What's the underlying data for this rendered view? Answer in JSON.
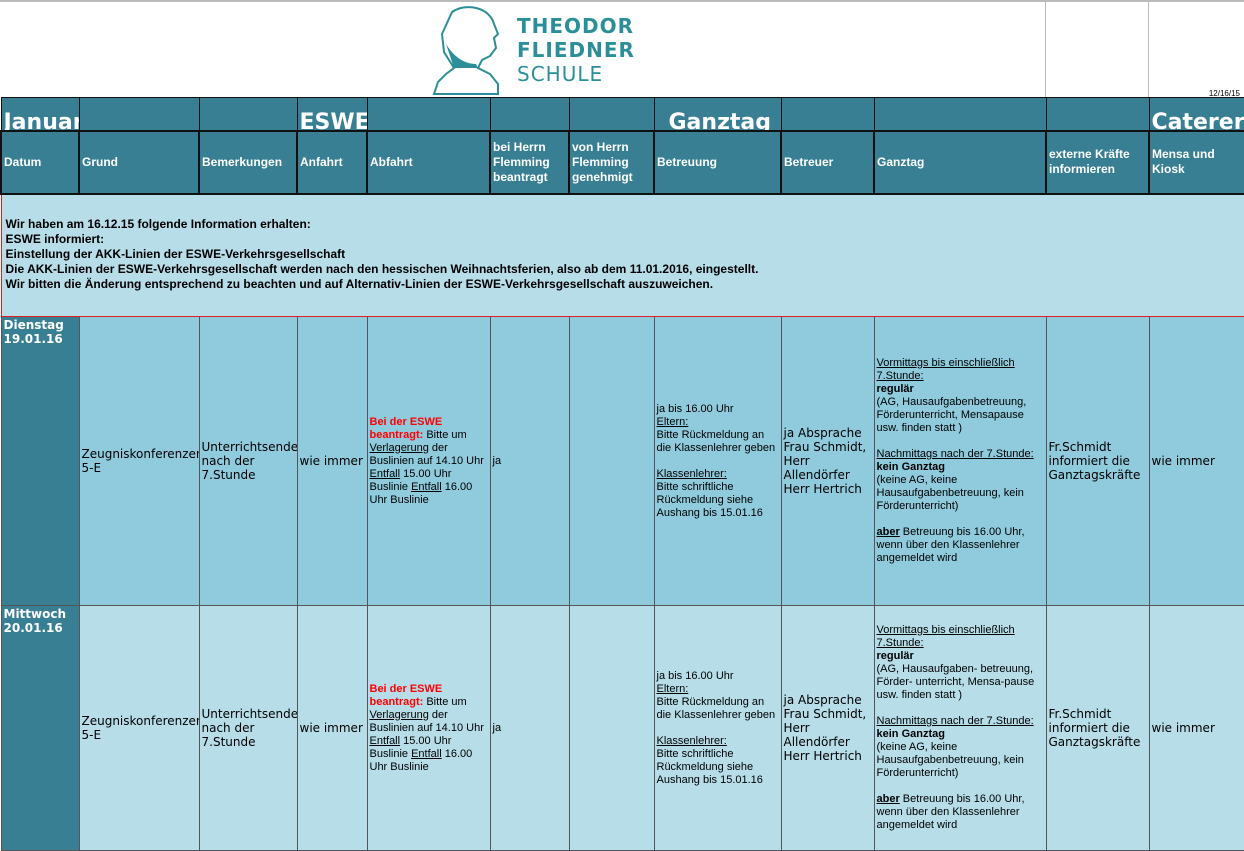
{
  "logo": {
    "line1": "THEODOR",
    "line2": "FLIEDNER",
    "line3": "SCHULE"
  },
  "print_date": "12/16/15",
  "group_headers": {
    "month": "Januar",
    "eswe": "ESWE",
    "ganztag": "Ganztag",
    "caterer": "Caterer"
  },
  "columns": [
    "Datum",
    "Grund",
    "Bemerkungen",
    "Anfahrt",
    "Abfahrt",
    "bei Herrn Flemming beantragt",
    "von Herrn Flemming genehmigt",
    "Betreuung",
    "Betreuer",
    "Ganztag",
    "externe Kräfte informieren",
    "Mensa und Kiosk"
  ],
  "notice": [
    "Wir haben am 16.12.15 folgende Information erhalten:",
    "ESWE informiert:",
    "Einstellung der AKK-Linien der ESWE-Verkehrsgesellschaft",
    "Die AKK-Linien der ESWE-Verkehrsgesellschaft werden nach den hessischen Weihnachtsferien, also ab dem 11.01.2016, eingestellt.",
    "Wir bitten die Änderung entsprechend zu beachten und auf Alternativ-Linien der ESWE-Verkehrsgesellschaft auszuweichen."
  ],
  "rows": [
    {
      "datum": [
        "Dienstag",
        "19.01.16"
      ],
      "grund": [
        "Zeugniskonferenzen",
        "5-E"
      ],
      "bemerkungen": [
        "Unterrichtsende",
        "nach der",
        "7.Stunde"
      ],
      "anfahrt": [
        "wie immer"
      ],
      "abfahrt": [
        [
          [
            "Bei der ESWE",
            "red"
          ]
        ],
        [
          [
            "beantragt:",
            "red"
          ],
          [
            "  Bitte um",
            ""
          ]
        ],
        [
          [
            "Verlagerung",
            "u"
          ],
          [
            " der",
            ""
          ]
        ],
        [
          [
            "Buslinien auf 14.10 Uhr",
            ""
          ]
        ],
        [
          [
            "Entfall",
            "u"
          ],
          [
            " 15.00 Uhr",
            ""
          ]
        ],
        [
          [
            "Buslinie ",
            ""
          ],
          [
            "Entfall",
            "u"
          ],
          [
            " 16.00",
            ""
          ]
        ],
        [
          [
            "Uhr Buslinie",
            ""
          ]
        ]
      ],
      "beantragt": [
        "ja"
      ],
      "genehmigt": [],
      "betreuung": [
        [
          [
            "ja bis 16.00 Uhr",
            ""
          ]
        ],
        [
          [
            "Eltern:",
            "u"
          ]
        ],
        [
          [
            "Bitte Rückmeldung an",
            ""
          ]
        ],
        [
          [
            "die Klassenlehrer geben",
            ""
          ]
        ],
        [],
        [
          [
            "Klassenlehrer:",
            "u"
          ]
        ],
        [
          [
            "Bitte schriftliche",
            ""
          ]
        ],
        [
          [
            "Rückmeldung siehe",
            ""
          ]
        ],
        [
          [
            "Aushang bis 15.01.16",
            ""
          ]
        ]
      ],
      "betreuer": [
        "ja Absprache",
        "Frau Schmidt,",
        "Herr",
        "Allendörfer",
        "Herr Hertrich"
      ],
      "ganztag": [
        [
          [
            "Vormittags bis einschließlich",
            "u"
          ]
        ],
        [
          [
            "7.Stunde:",
            "u"
          ]
        ],
        [
          [
            "regulär",
            "b"
          ]
        ],
        [
          [
            " (AG, Hausaufgabenbetreuung,",
            ""
          ]
        ],
        [
          [
            "Förderunterricht, Mensapause",
            ""
          ]
        ],
        [
          [
            "usw. finden statt )",
            ""
          ]
        ],
        [],
        [
          [
            "Nachmittags nach der 7.Stunde:",
            "u"
          ]
        ],
        [
          [
            "kein Ganztag",
            "b"
          ]
        ],
        [
          [
            "(keine AG, keine",
            ""
          ]
        ],
        [
          [
            "Hausaufgabenbetreuung, kein",
            ""
          ]
        ],
        [
          [
            "Förderunterricht)",
            ""
          ]
        ],
        [],
        [
          [
            "aber",
            "b u"
          ],
          [
            " Betreuung bis 16.00 Uhr,",
            ""
          ]
        ],
        [
          [
            "wenn über den Klassenlehrer",
            ""
          ]
        ],
        [
          [
            "angemeldet wird",
            ""
          ]
        ]
      ],
      "extern": [
        "Fr.Schmidt",
        "informiert die",
        "Ganztagskräfte"
      ],
      "mensa": [
        "wie immer"
      ]
    },
    {
      "datum": [
        "Mittwoch",
        "20.01.16"
      ],
      "grund": [
        "Zeugniskonferenzen",
        "5-E"
      ],
      "bemerkungen": [
        "Unterrichtsende",
        "nach der 7.Stunde"
      ],
      "anfahrt": [
        "wie immer"
      ],
      "abfahrt": [
        [
          [
            "Bei der ESWE",
            "red"
          ]
        ],
        [
          [
            "beantragt:",
            "red"
          ],
          [
            " Bitte um",
            ""
          ]
        ],
        [
          [
            "Verlagerung",
            "u"
          ],
          [
            " der",
            ""
          ]
        ],
        [
          [
            "Buslinien auf 14.10 Uhr",
            ""
          ]
        ],
        [
          [
            "Entfall",
            "u"
          ],
          [
            " 15.00 Uhr",
            ""
          ]
        ],
        [
          [
            "Buslinie ",
            ""
          ],
          [
            "Entfall",
            "u"
          ],
          [
            " 16.00",
            ""
          ]
        ],
        [
          [
            "Uhr Buslinie",
            ""
          ]
        ]
      ],
      "beantragt": [
        "ja"
      ],
      "genehmigt": [],
      "betreuung": [
        [
          [
            "ja bis 16.00 Uhr",
            ""
          ]
        ],
        [
          [
            "Eltern:",
            "u"
          ]
        ],
        [
          [
            "Bitte Rückmeldung an",
            ""
          ]
        ],
        [
          [
            "die Klassenlehrer geben",
            ""
          ]
        ],
        [],
        [
          [
            "Klassenlehrer:",
            "u"
          ]
        ],
        [
          [
            "Bitte schriftliche",
            ""
          ]
        ],
        [
          [
            "Rückmeldung siehe",
            ""
          ]
        ],
        [
          [
            "Aushang bis 15.01.16",
            ""
          ]
        ]
      ],
      "betreuer": [
        "ja Absprache",
        "Frau Schmidt,",
        "Herr Allendörfer",
        "Herr Hertrich"
      ],
      "ganztag": [
        [
          [
            "Vormittags bis einschließlich",
            "u"
          ]
        ],
        [
          [
            "7.Stunde:",
            "u"
          ]
        ],
        [
          [
            "regulär",
            "b"
          ]
        ],
        [
          [
            " (AG, Hausaufgaben- betreuung,",
            ""
          ]
        ],
        [
          [
            "Förder- unterricht, Mensa-pause",
            ""
          ]
        ],
        [
          [
            "usw. finden statt )",
            ""
          ]
        ],
        [],
        [
          [
            "Nachmittags nach der 7.Stunde:",
            "u"
          ]
        ],
        [
          [
            "kein Ganztag",
            "b"
          ]
        ],
        [
          [
            "(keine AG, keine",
            ""
          ]
        ],
        [
          [
            "Hausaufgabenbetreuung, kein",
            ""
          ]
        ],
        [
          [
            "Förderunterricht)",
            ""
          ]
        ],
        [],
        [
          [
            "aber",
            "b u"
          ],
          [
            " Betreuung bis 16.00 Uhr,",
            ""
          ]
        ],
        [
          [
            "wenn über den Klassenlehrer",
            ""
          ]
        ],
        [
          [
            "angemeldet wird",
            ""
          ]
        ]
      ],
      "extern": [
        "Fr.Schmidt",
        "informiert die",
        "Ganztagskräfte"
      ],
      "mensa": [
        "wie immer"
      ]
    }
  ],
  "colors": {
    "header": "#387f94",
    "row_dark": "#8fcbdc",
    "row_light": "#b6dde8",
    "notice_border": "#e02020",
    "accent_red": "#ff0000",
    "logo": "#2a8f98"
  }
}
